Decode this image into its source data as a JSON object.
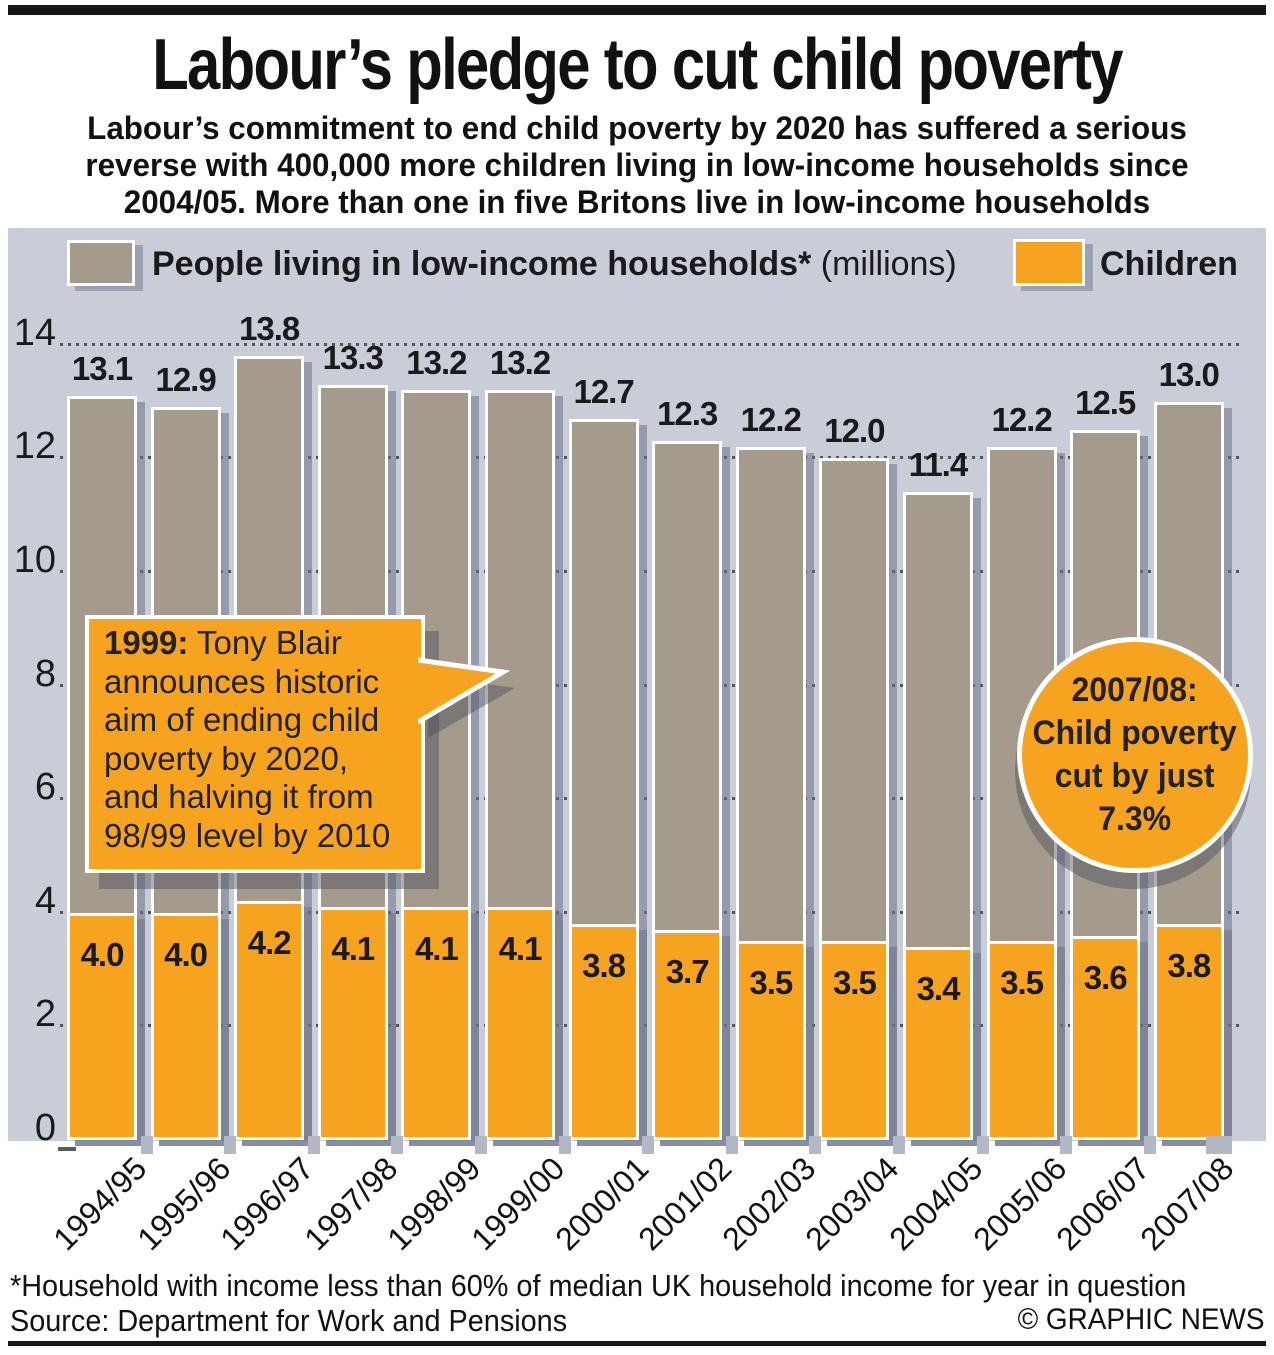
{
  "header": {
    "title": "Labour’s pledge to cut child poverty",
    "subtitle": "Labour’s commitment to end child poverty by 2020 has suffered a serious\nreverse with 400,000 more children living in low-income households since\n2004/05. More than one in five Britons live in low-income households"
  },
  "legend": {
    "households_bold": "People living in low-income households*",
    "households_normal": " (millions)",
    "children": "Children"
  },
  "chart_data": {
    "type": "bar",
    "title": "Labour’s pledge to cut child poverty",
    "categories": [
      "1994/95",
      "1995/96",
      "1996/97",
      "1997/98",
      "1998/99",
      "1999/00",
      "2000/01",
      "2001/02",
      "2002/03",
      "2003/04",
      "2004/05",
      "2005/06",
      "2006/07",
      "2007/08"
    ],
    "series": [
      {
        "name": "People living in low-income households (millions)",
        "color": "#a49b8d",
        "values": [
          13.1,
          12.9,
          13.8,
          13.3,
          13.2,
          13.2,
          12.7,
          12.3,
          12.2,
          12.0,
          11.4,
          12.2,
          12.5,
          13.0
        ]
      },
      {
        "name": "Children",
        "color": "#f6a41f",
        "values": [
          4.0,
          4.0,
          4.2,
          4.1,
          4.1,
          4.1,
          3.8,
          3.7,
          3.5,
          3.5,
          3.4,
          3.5,
          3.6,
          3.8
        ]
      }
    ],
    "xlabel": "",
    "ylabel": "",
    "ylim": [
      0,
      14
    ],
    "yticks": [
      0,
      2,
      4,
      6,
      8,
      10,
      12,
      14
    ],
    "grid": "dotted-horizontal",
    "legend_position": "top",
    "value_labels": "shown"
  },
  "annotations": {
    "bubble": {
      "lead": "1999:",
      "text": " Tony Blair\nannounces historic\naim of ending child\npoverty by 2020,\nand halving it from\n98/99 level by 2010"
    },
    "circle": {
      "text": "2007/08:\nChild poverty\ncut by just\n7.3%"
    }
  },
  "footer": {
    "note": "*Household with income less than 60% of median UK household income for year in question",
    "source": "Source: Department for Work and Pensions",
    "credit": "© GRAPHIC NEWS"
  },
  "colors": {
    "panel_background": "#c8cdd8",
    "households_bar": "#a49b8d",
    "children_bar": "#f6a41f",
    "bar_border": "#ffffff",
    "bar_shadow": "#6c7389",
    "text": "#1a1a1a",
    "rule": "#161616"
  }
}
